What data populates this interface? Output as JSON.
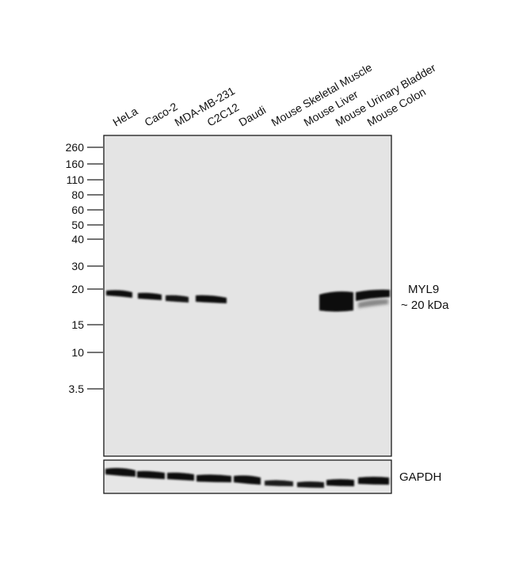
{
  "lanes": [
    "HeLa",
    "Caco-2",
    "MDA-MB-231",
    "C2C12",
    "Daudi",
    "Mouse Skeletal Muscle",
    "Mouse Liver",
    "Mouse Urinary Bladder",
    "Mouse Colon"
  ],
  "markers": [
    "260",
    "160",
    "110",
    "80",
    "60",
    "50",
    "40",
    "30",
    "20",
    "15",
    "10",
    "3.5"
  ],
  "target": {
    "name": "MYL9",
    "size": "~ 20 kDa"
  },
  "loading_control": "GAPDH",
  "colors": {
    "membrane": "#e4e4e4",
    "band": "#0d0d0d",
    "frame": "#1a1a1a"
  }
}
